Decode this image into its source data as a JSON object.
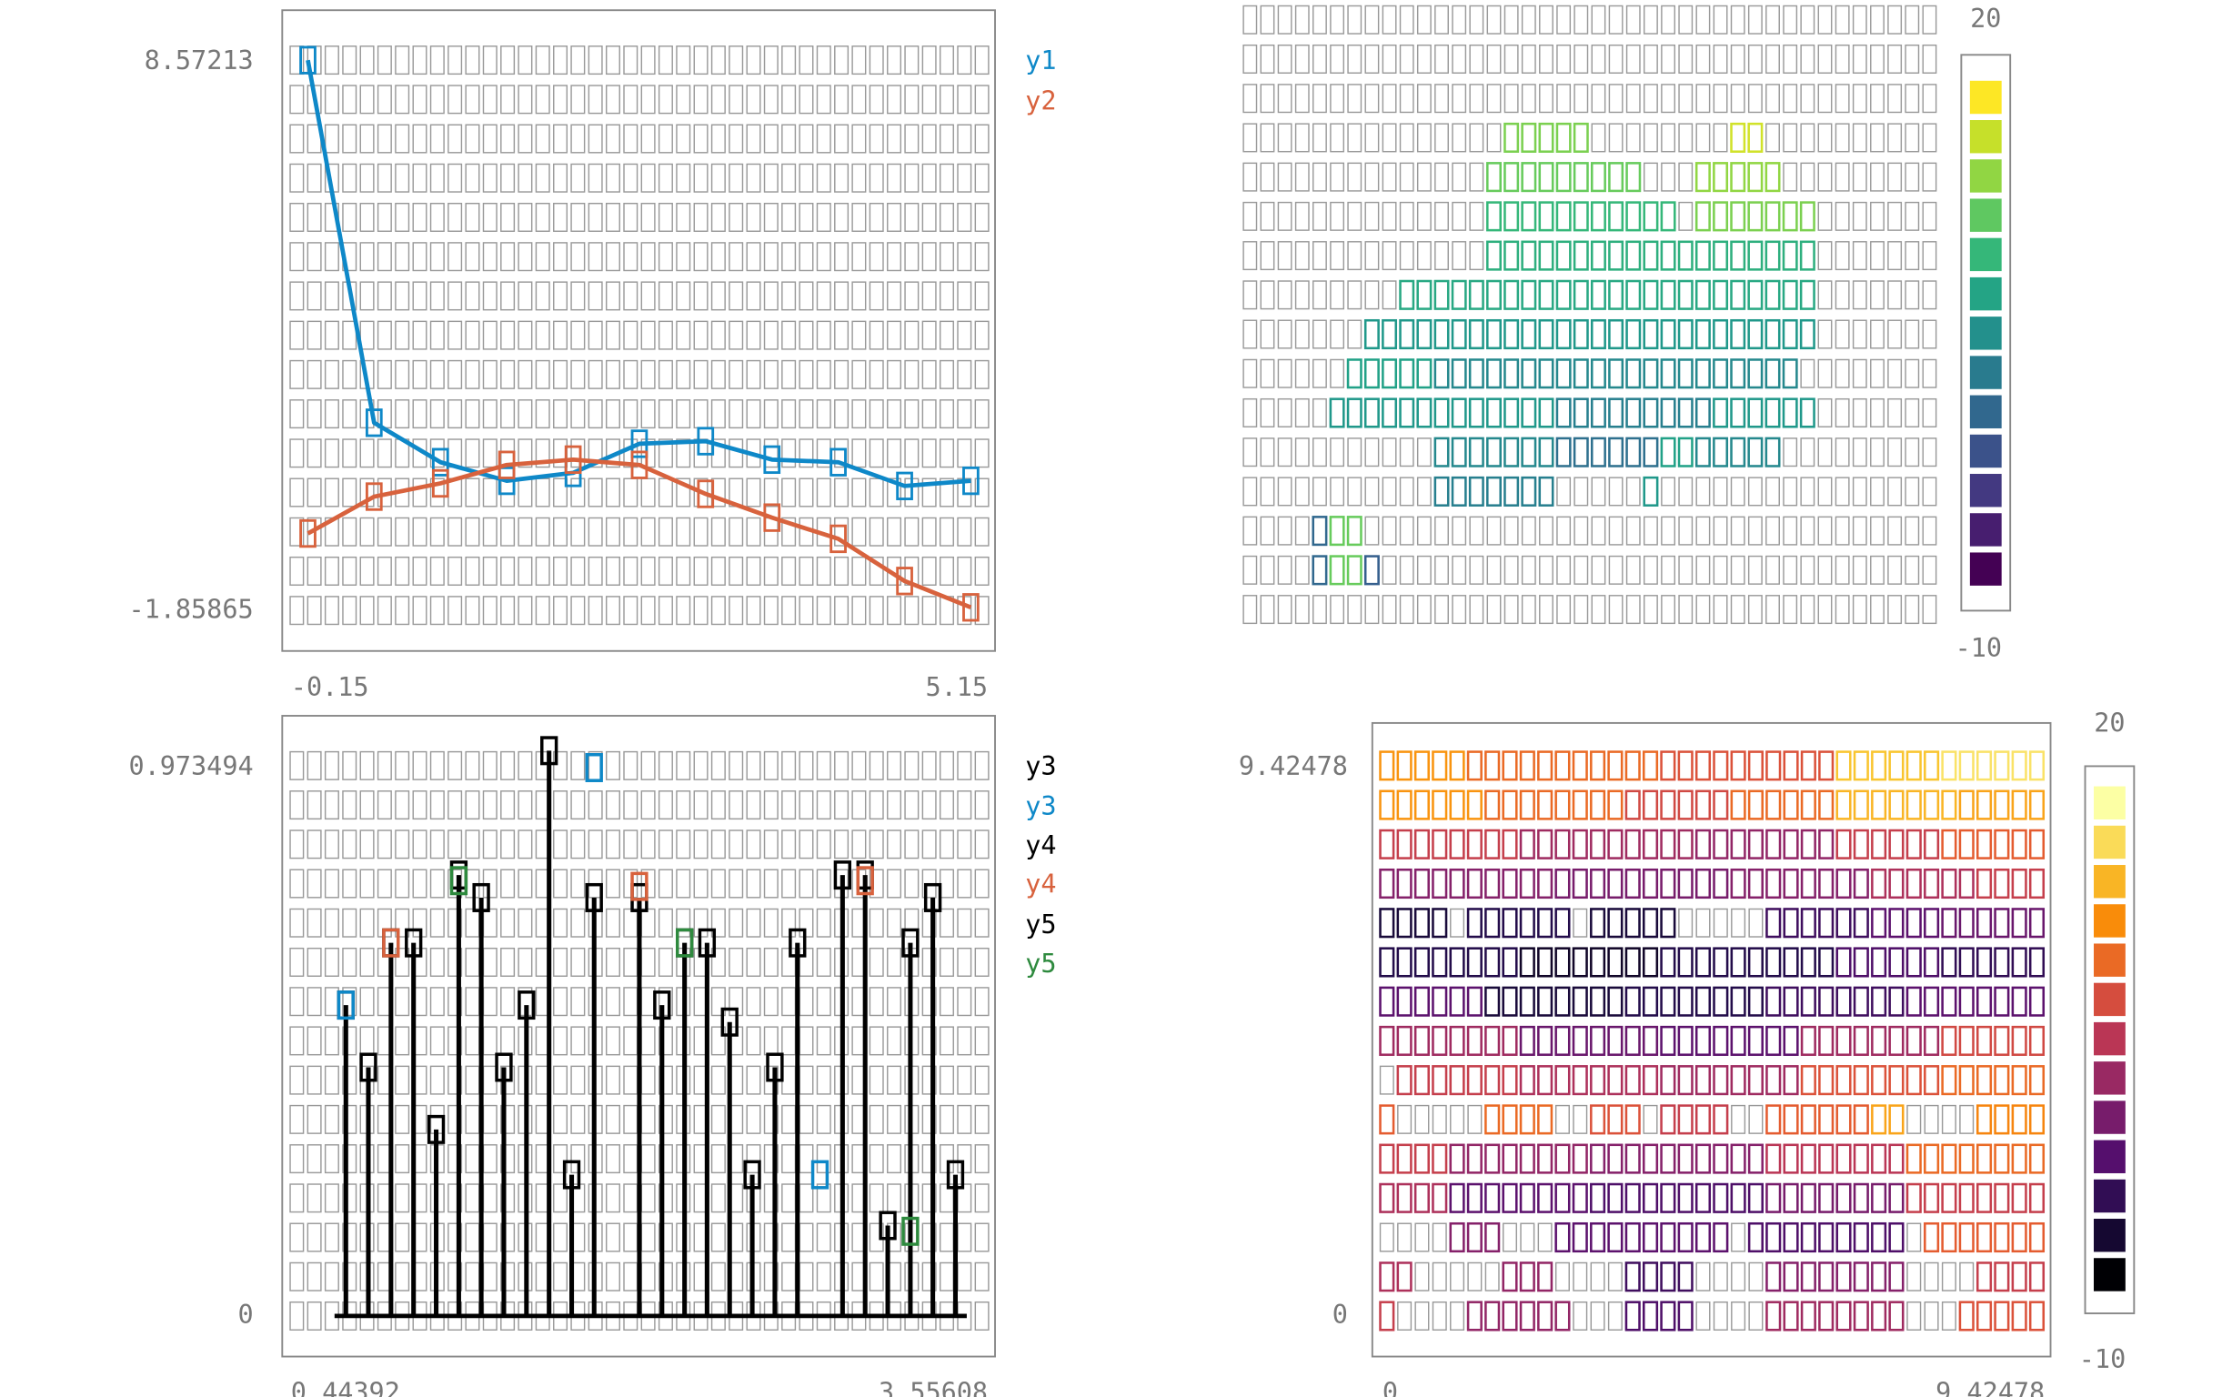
{
  "chart_data": [
    {
      "type": "line",
      "panel": "top-left",
      "title": "",
      "xlabel": "",
      "ylabel": "",
      "xlim": [
        -0.15,
        5.15
      ],
      "ylim": [
        -1.85865,
        8.57213
      ],
      "x_tick_labels": [
        "-0.15",
        "5.15"
      ],
      "y_tick_labels": [
        "8.57213",
        "-1.85865"
      ],
      "legend_placement": "right",
      "series": [
        {
          "name": "y1",
          "color": "#0e88c8",
          "x": [
            0,
            0.5,
            1,
            1.5,
            2,
            2.5,
            3,
            3.5,
            4,
            4.5,
            5
          ],
          "y": [
            8.57,
            1.7,
            0.95,
            0.6,
            0.75,
            1.3,
            1.35,
            1.0,
            0.95,
            0.5,
            0.6
          ]
        },
        {
          "name": "y2",
          "color": "#d8623d",
          "x": [
            0,
            0.5,
            1,
            1.5,
            2,
            2.5,
            3,
            3.5,
            4,
            4.5,
            5
          ],
          "y": [
            -0.4,
            0.3,
            0.55,
            0.9,
            1.0,
            0.9,
            0.35,
            -0.1,
            -0.5,
            -1.3,
            -1.8
          ]
        }
      ]
    },
    {
      "type": "heatmap",
      "panel": "top-right",
      "title": "",
      "colormap": "viridis",
      "colorbar_range": [
        -10,
        20
      ],
      "colorbar_tick_labels": [
        "20",
        "-10"
      ],
      "cols": 40,
      "rows": 16,
      "row_segments": [
        [],
        [],
        [],
        [
          [
            15,
            20,
            14
          ],
          [
            28,
            30,
            18
          ]
        ],
        [
          [
            14,
            23,
            13
          ],
          [
            26,
            31,
            15
          ]
        ],
        [
          [
            14,
            25,
            10
          ],
          [
            26,
            33,
            14
          ]
        ],
        [
          [
            14,
            33,
            9
          ]
        ],
        [
          [
            9,
            33,
            8
          ]
        ],
        [
          [
            7,
            33,
            6
          ]
        ],
        [
          [
            6,
            11,
            7
          ],
          [
            11,
            32,
            4
          ]
        ],
        [
          [
            5,
            18,
            6
          ],
          [
            18,
            27,
            3
          ],
          [
            27,
            33,
            6
          ]
        ],
        [
          [
            11,
            18,
            4
          ],
          [
            18,
            24,
            1
          ],
          [
            24,
            26,
            7
          ],
          [
            26,
            31,
            4
          ]
        ],
        [
          [
            11,
            18,
            3
          ],
          [
            23,
            24,
            6
          ]
        ],
        [
          [
            4,
            5,
            0
          ],
          [
            5,
            7,
            13
          ]
        ],
        [
          [
            4,
            5,
            0
          ],
          [
            5,
            7,
            13
          ],
          [
            7,
            8,
            -1
          ]
        ],
        []
      ]
    },
    {
      "type": "scatter",
      "panel": "bottom-left",
      "title": "",
      "xlabel": "",
      "ylabel": "",
      "xlim": [
        0.44392,
        3.55608
      ],
      "ylim": [
        0,
        0.973494
      ],
      "x_tick_labels": [
        "0.44392",
        "3.55608"
      ],
      "y_tick_labels": [
        "0.973494",
        "0"
      ],
      "legend_placement": "right",
      "series": [
        {
          "name": "y3",
          "color": "#000000",
          "kind": "stem",
          "x": [
            0.7,
            1.0,
            1.3,
            1.6,
            1.8,
            2.1,
            2.4,
            2.7,
            3.0,
            3.3
          ],
          "y": [
            0.55,
            0.66,
            0.74,
            1.0,
            0.74,
            0.55,
            0.52,
            0.66,
            0.78,
            0.74
          ]
        },
        {
          "name": "y3",
          "color": "#0e88c8",
          "kind": "point",
          "x": [
            0.7,
            1.8,
            2.8
          ],
          "y": [
            0.55,
            0.97,
            0.25
          ]
        },
        {
          "name": "y4",
          "color": "#000000",
          "kind": "stem",
          "x": [
            0.9,
            1.2,
            1.5,
            2.0,
            2.3,
            2.6,
            2.9,
            3.2
          ],
          "y": [
            0.66,
            0.78,
            0.55,
            0.74,
            0.66,
            0.44,
            0.78,
            0.66
          ]
        },
        {
          "name": "y4",
          "color": "#d8623d",
          "kind": "point",
          "x": [
            0.9,
            2.0,
            3.0
          ],
          "y": [
            0.66,
            0.76,
            0.77
          ]
        },
        {
          "name": "y5",
          "color": "#000000",
          "kind": "stem",
          "x": [
            0.8,
            1.1,
            1.4,
            1.7,
            2.2,
            2.5,
            3.1,
            3.4
          ],
          "y": [
            0.44,
            0.33,
            0.44,
            0.25,
            0.66,
            0.25,
            0.16,
            0.25
          ]
        },
        {
          "name": "y5",
          "color": "#2e8a3e",
          "kind": "point",
          "x": [
            1.2,
            2.2,
            3.2
          ],
          "y": [
            0.77,
            0.66,
            0.15
          ]
        }
      ]
    },
    {
      "type": "heatmap",
      "panel": "bottom-right",
      "title": "",
      "colormap": "inferno",
      "xlim": [
        0,
        9.42478
      ],
      "ylim": [
        0,
        9.42478
      ],
      "x_tick_labels": [
        "0",
        "9.42478"
      ],
      "y_tick_labels": [
        "9.42478",
        "0"
      ],
      "colorbar_range": [
        -10,
        20
      ],
      "colorbar_tick_labels": [
        "20",
        "-10"
      ],
      "cols": 38,
      "rows": 15,
      "row_segments": [
        [
          [
            0,
            5,
            13
          ],
          [
            5,
            16,
            10
          ],
          [
            16,
            26,
            8
          ],
          [
            26,
            32,
            16
          ],
          [
            32,
            38,
            18
          ]
        ],
        [
          [
            0,
            6,
            13
          ],
          [
            6,
            14,
            10
          ],
          [
            14,
            20,
            7
          ],
          [
            20,
            26,
            10
          ],
          [
            26,
            33,
            15
          ],
          [
            33,
            38,
            14
          ]
        ],
        [
          [
            0,
            8,
            6
          ],
          [
            8,
            18,
            3
          ],
          [
            18,
            26,
            2
          ],
          [
            26,
            32,
            6
          ],
          [
            32,
            38,
            9
          ]
        ],
        [
          [
            0,
            10,
            1
          ],
          [
            10,
            20,
            0
          ],
          [
            20,
            28,
            1
          ],
          [
            28,
            34,
            4
          ],
          [
            34,
            38,
            6
          ]
        ],
        [
          [
            0,
            4,
            -7
          ],
          [
            5,
            11,
            -6
          ],
          [
            12,
            17,
            -7
          ],
          [
            22,
            28,
            -4
          ],
          [
            28,
            32,
            -2
          ],
          [
            32,
            38,
            -1
          ]
        ],
        [
          [
            0,
            8,
            -6
          ],
          [
            8,
            16,
            -8
          ],
          [
            16,
            26,
            -6
          ],
          [
            26,
            32,
            -3
          ],
          [
            32,
            38,
            -5
          ]
        ],
        [
          [
            0,
            6,
            -2
          ],
          [
            6,
            14,
            -7
          ],
          [
            14,
            22,
            -6
          ],
          [
            22,
            30,
            -4
          ],
          [
            30,
            38,
            -2
          ]
        ],
        [
          [
            0,
            8,
            3
          ],
          [
            8,
            16,
            -1
          ],
          [
            16,
            24,
            -2
          ],
          [
            24,
            32,
            3
          ],
          [
            32,
            38,
            7
          ]
        ],
        [
          [
            1,
            8,
            6
          ],
          [
            8,
            16,
            4
          ],
          [
            16,
            24,
            3
          ],
          [
            24,
            32,
            8
          ],
          [
            32,
            38,
            10
          ]
        ],
        [
          [
            0,
            1,
            9
          ],
          [
            6,
            10,
            10
          ],
          [
            12,
            15,
            8
          ],
          [
            16,
            20,
            6
          ],
          [
            22,
            28,
            9
          ],
          [
            28,
            30,
            14
          ],
          [
            34,
            38,
            12
          ]
        ],
        [
          [
            0,
            4,
            6
          ],
          [
            4,
            12,
            2
          ],
          [
            12,
            22,
            1
          ],
          [
            22,
            30,
            5
          ],
          [
            30,
            38,
            10
          ]
        ],
        [
          [
            0,
            4,
            4
          ],
          [
            4,
            12,
            -2
          ],
          [
            12,
            22,
            -3
          ],
          [
            22,
            30,
            0
          ],
          [
            30,
            38,
            6
          ]
        ],
        [
          [
            4,
            7,
            1
          ],
          [
            10,
            20,
            -2
          ],
          [
            21,
            30,
            -3
          ],
          [
            31,
            38,
            9
          ]
        ],
        [
          [
            0,
            2,
            4
          ],
          [
            7,
            10,
            2
          ],
          [
            14,
            18,
            -4
          ],
          [
            22,
            30,
            1
          ],
          [
            34,
            38,
            6
          ]
        ],
        [
          [
            0,
            1,
            6
          ],
          [
            5,
            11,
            2
          ],
          [
            14,
            18,
            -3
          ],
          [
            22,
            30,
            3
          ],
          [
            33,
            38,
            8
          ]
        ]
      ]
    }
  ]
}
